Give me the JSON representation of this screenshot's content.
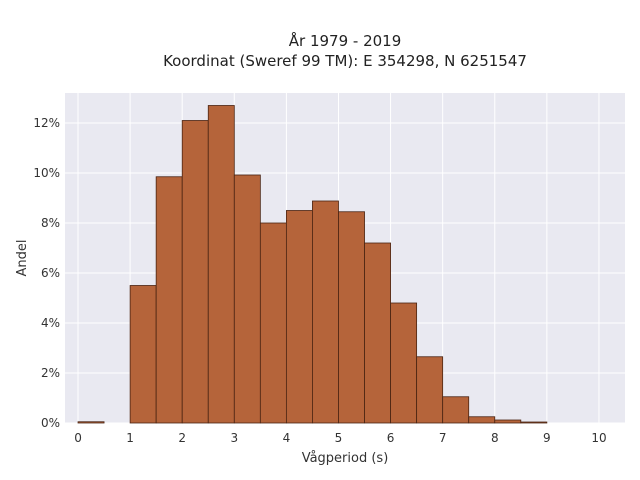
{
  "chart_data": {
    "type": "bar",
    "title": [
      "År 1979 - 2019",
      "Koordinat (Sweref 99 TM): E 354298, N 6251547"
    ],
    "xlabel": "Vågperiod (s)",
    "ylabel": "Andel",
    "xlim": [
      -0.25,
      10.5
    ],
    "ylim": [
      0,
      13.2
    ],
    "x_ticks": [
      0,
      1,
      2,
      3,
      4,
      5,
      6,
      7,
      8,
      9,
      10
    ],
    "y_ticks": [
      0,
      2,
      4,
      6,
      8,
      10,
      12
    ],
    "y_tick_format": "percent",
    "bin_width": 0.5,
    "bins": [
      {
        "start": 0.0,
        "value": 0.05
      },
      {
        "start": 0.5,
        "value": 0.0
      },
      {
        "start": 1.0,
        "value": 5.5
      },
      {
        "start": 1.5,
        "value": 9.85
      },
      {
        "start": 2.0,
        "value": 12.1
      },
      {
        "start": 2.5,
        "value": 12.7
      },
      {
        "start": 3.0,
        "value": 9.92
      },
      {
        "start": 3.5,
        "value": 8.0
      },
      {
        "start": 4.0,
        "value": 8.5
      },
      {
        "start": 4.5,
        "value": 8.88
      },
      {
        "start": 5.0,
        "value": 8.45
      },
      {
        "start": 5.5,
        "value": 7.2
      },
      {
        "start": 6.0,
        "value": 4.8
      },
      {
        "start": 6.5,
        "value": 2.65
      },
      {
        "start": 7.0,
        "value": 1.05
      },
      {
        "start": 7.5,
        "value": 0.25
      },
      {
        "start": 8.0,
        "value": 0.12
      },
      {
        "start": 8.5,
        "value": 0.04
      },
      {
        "start": 9.0,
        "value": 0.0
      },
      {
        "start": 9.5,
        "value": 0.0
      }
    ],
    "colors": {
      "bar_fill": "#b5643a",
      "bar_edge": "#4a2412",
      "plot_bg": "#e9e9f1",
      "grid": "#ffffff"
    },
    "grid": true
  }
}
